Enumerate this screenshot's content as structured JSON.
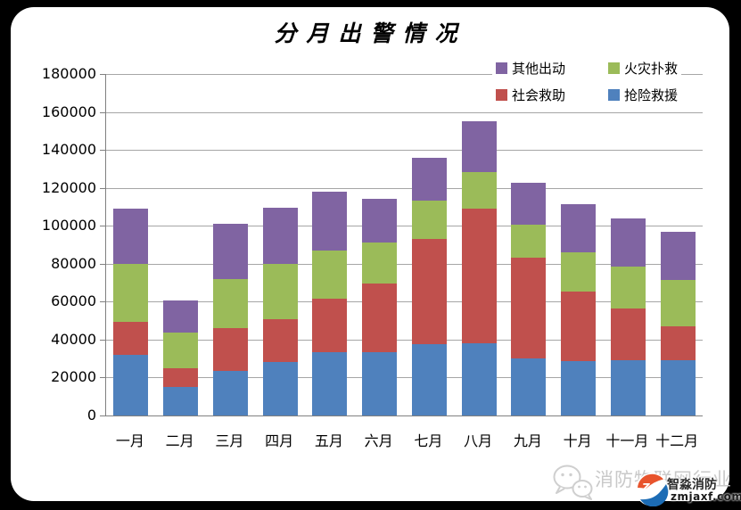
{
  "chart_data": {
    "type": "bar",
    "stacked": true,
    "title": "分月出警情况",
    "categories": [
      "一月",
      "二月",
      "三月",
      "四月",
      "五月",
      "六月",
      "七月",
      "八月",
      "九月",
      "十月",
      "十一月",
      "十二月"
    ],
    "series": [
      {
        "name": "抢险救援",
        "color": "#4F81BD",
        "values": [
          32000,
          15000,
          23500,
          28000,
          33500,
          33500,
          37500,
          38000,
          30000,
          28500,
          29000,
          29000
        ]
      },
      {
        "name": "社会救助",
        "color": "#C0504D",
        "values": [
          17500,
          10000,
          22500,
          23000,
          28000,
          36000,
          55500,
          71000,
          53000,
          37000,
          27500,
          18000
        ]
      },
      {
        "name": "火灾扑救",
        "color": "#9BBB59",
        "values": [
          30500,
          18500,
          26000,
          29000,
          25500,
          21500,
          20500,
          19500,
          17500,
          20500,
          22000,
          24500
        ]
      },
      {
        "name": "其他出动",
        "color": "#8064A2",
        "values": [
          29000,
          17000,
          29000,
          29500,
          31000,
          23000,
          22500,
          26500,
          22000,
          25500,
          25500,
          25500
        ]
      }
    ],
    "stack_order_bottom_to_top": [
      "抢险救援",
      "社会救助",
      "火灾扑救",
      "其他出动"
    ],
    "legend_order": [
      "其他出动",
      "火灾扑救",
      "社会救助",
      "抢险救援"
    ],
    "legend_position": "top-right",
    "ylim": [
      0,
      180000
    ],
    "ytick_step": 20000,
    "yticks": [
      "0",
      "20000",
      "40000",
      "60000",
      "80000",
      "100000",
      "120000",
      "140000",
      "160000",
      "180000"
    ],
    "grid": true
  },
  "watermark": {
    "channel_name": "消防物联网行业",
    "brand_name": "智淼消防",
    "brand_url": "zmjaxf.com",
    "logo_monogram": "Zm"
  },
  "colors": {
    "background": "#000000",
    "card_background": "#FFFFFF",
    "gridline": "#A6A6A6",
    "axis_line": "#808080",
    "watermark_gray": "#C9C9C9",
    "brand_orange": "#E8542D",
    "brand_blue": "#1C6CB5"
  }
}
